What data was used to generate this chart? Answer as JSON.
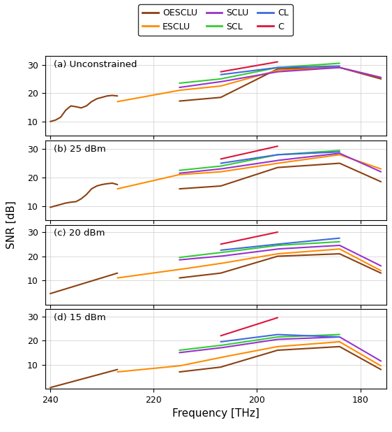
{
  "colors": {
    "OESCLU": "#8B4010",
    "ESCLU": "#FF8C00",
    "SCLU": "#9932CC",
    "SCL": "#32CD32",
    "CL": "#4169E1",
    "C": "#DC143C"
  },
  "legend_order": [
    "OESCLU",
    "ESCLU",
    "SCLU",
    "SCL",
    "CL",
    "C"
  ],
  "panels": [
    {
      "label": "(a) Unconstrained",
      "ylim": [
        5,
        33
      ],
      "yticks": [
        10,
        20,
        30
      ]
    },
    {
      "label": "(b) 25 dBm",
      "ylim": [
        5,
        33
      ],
      "yticks": [
        10,
        20,
        30
      ]
    },
    {
      "label": "(c) 20 dBm",
      "ylim": [
        0,
        33
      ],
      "yticks": [
        10,
        20,
        30
      ]
    },
    {
      "label": "(d) 15 dBm",
      "ylim": [
        0,
        33
      ],
      "yticks": [
        10,
        20,
        30
      ]
    }
  ],
  "xlim_left": 241,
  "xlim_right": 175,
  "xticks": [
    240,
    220,
    200,
    180
  ],
  "xlabel": "Frequency [THz]",
  "ylabel": "SNR [dB]"
}
